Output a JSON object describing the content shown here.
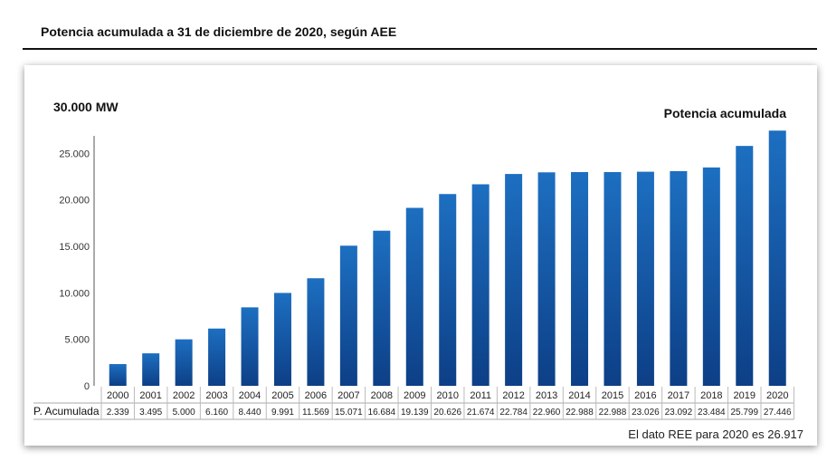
{
  "header": {
    "title": "Potencia acumulada a 31 de diciembre de 2020, según AEE"
  },
  "footnote": "El dato REE para 2020 es 26.917",
  "colors": {
    "bar_top": "#1d6fc1",
    "bar_bottom": "#0d3f86",
    "axis": "#555555"
  },
  "chart_data": {
    "type": "bar",
    "ytop_label": "30.000 MW",
    "series_label": "Potencia acumulada",
    "table_row_label": "P. Acumulada",
    "categories": [
      "2000",
      "2001",
      "2002",
      "2003",
      "2004",
      "2005",
      "2006",
      "2007",
      "2008",
      "2009",
      "2010",
      "2011",
      "2012",
      "2013",
      "2014",
      "2015",
      "2016",
      "2017",
      "2018",
      "2019",
      "2020"
    ],
    "values": [
      2339,
      3495,
      5000,
      6160,
      8440,
      9991,
      11569,
      15071,
      16684,
      19139,
      20626,
      21674,
      22784,
      22960,
      22988,
      22988,
      23026,
      23092,
      23484,
      25799,
      27446
    ],
    "value_labels": [
      "2.339",
      "3.495",
      "5.000",
      "6.160",
      "8.440",
      "9.991",
      "11.569",
      "15.071",
      "16.684",
      "19.139",
      "20.626",
      "21.674",
      "22.784",
      "22.960",
      "22.988",
      "22.988",
      "23.026",
      "23.092",
      "23.484",
      "25.799",
      "27.446"
    ],
    "yticks": [
      0,
      5000,
      10000,
      15000,
      20000,
      25000
    ],
    "ytick_labels": [
      "0",
      "5.000",
      "10.000",
      "15.000",
      "20.000",
      "25.000"
    ],
    "ylim": [
      0,
      30000
    ],
    "grid": false,
    "legend": "none"
  }
}
